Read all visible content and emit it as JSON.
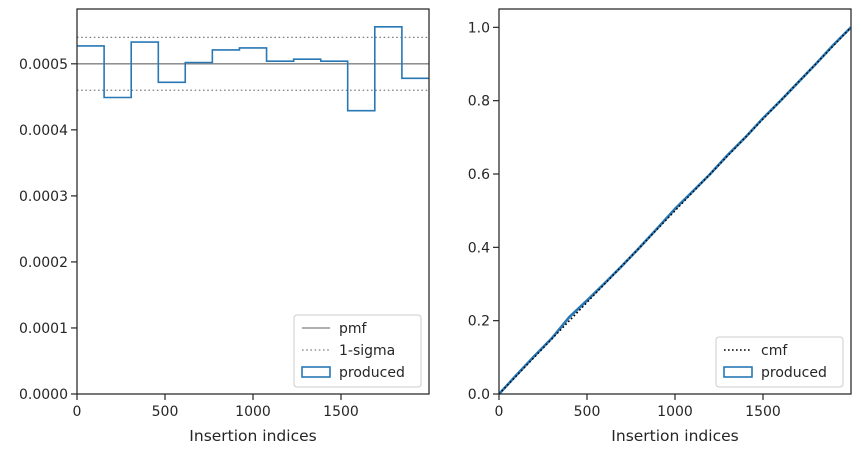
{
  "chart_data": [
    {
      "type": "line",
      "xlabel": "Insertion indices",
      "ylabel": "",
      "xlim": [
        0,
        2000
      ],
      "ylim": [
        0,
        0.000583
      ],
      "x_ticks": [
        0,
        500,
        1000,
        1500
      ],
      "x_tick_labels": [
        "0",
        "500",
        "1000",
        "1500"
      ],
      "y_ticks": [
        0,
        0.0001,
        0.0002,
        0.0003,
        0.0004,
        0.0005
      ],
      "y_tick_labels": [
        "0.0000",
        "0.0001",
        "0.0002",
        "0.0003",
        "0.0004",
        "0.0005"
      ],
      "grid": false,
      "legend_position": "lower-right",
      "colors": {
        "pmf": "#808080",
        "sigma": "#808080",
        "produced": "#2878b5"
      },
      "series": [
        {
          "name": "pmf",
          "style": "solid",
          "x": [
            0,
            2000
          ],
          "values": [
            0.0005,
            0.0005
          ]
        },
        {
          "name": "1-sigma",
          "style": "dotted",
          "bands": [
            0.00054,
            0.00046
          ]
        },
        {
          "name": "produced",
          "style": "step-histogram",
          "bin_edges": [
            0,
            154,
            308,
            462,
            615,
            769,
            923,
            1077,
            1231,
            1385,
            1538,
            1692,
            1846,
            2000
          ],
          "values": [
            0.000527,
            0.000449,
            0.000533,
            0.000472,
            0.000502,
            0.000521,
            0.000524,
            0.000504,
            0.000507,
            0.000504,
            0.000429,
            0.000556,
            0.000478
          ]
        }
      ],
      "legend_entries": [
        "pmf",
        "1-sigma",
        "produced"
      ]
    },
    {
      "type": "line",
      "xlabel": "Insertion indices",
      "ylabel": "",
      "xlim": [
        0,
        2000
      ],
      "ylim": [
        0,
        1.05
      ],
      "x_ticks": [
        0,
        500,
        1000,
        1500
      ],
      "x_tick_labels": [
        "0",
        "500",
        "1000",
        "1500"
      ],
      "y_ticks": [
        0,
        0.2,
        0.4,
        0.6,
        0.8,
        1.0
      ],
      "y_tick_labels": [
        "0.0",
        "0.2",
        "0.4",
        "0.6",
        "0.8",
        "1.0"
      ],
      "grid": false,
      "legend_position": "lower-right",
      "colors": {
        "cmf": "#000000",
        "produced": "#2878b5"
      },
      "series": [
        {
          "name": "cmf",
          "style": "dotted",
          "x": [
            0,
            2000
          ],
          "values": [
            0,
            1.0
          ]
        },
        {
          "name": "produced",
          "style": "step-cumulative",
          "x": [
            0,
            100,
            200,
            300,
            400,
            500,
            600,
            700,
            800,
            900,
            1000,
            1100,
            1200,
            1300,
            1400,
            1500,
            1600,
            1700,
            1800,
            1900,
            2000
          ],
          "values": [
            0,
            0.052,
            0.103,
            0.152,
            0.21,
            0.255,
            0.302,
            0.35,
            0.4,
            0.452,
            0.505,
            0.552,
            0.6,
            0.652,
            0.7,
            0.752,
            0.8,
            0.85,
            0.9,
            0.952,
            1.0
          ]
        }
      ],
      "legend_entries": [
        "cmf",
        "produced"
      ]
    }
  ]
}
